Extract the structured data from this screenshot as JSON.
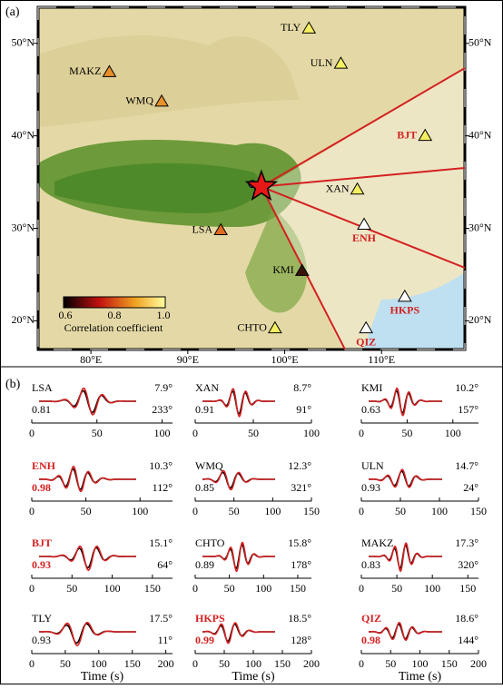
{
  "panel_a": {
    "label": "(a)",
    "lon_range": [
      74.55,
      118.6
    ],
    "lat_range": [
      16.9,
      53.9
    ],
    "lon_ticks": [
      {
        "value": 80,
        "label": "80°E"
      },
      {
        "value": 90,
        "label": "90°E"
      },
      {
        "value": 100,
        "label": "100°E"
      },
      {
        "value": 110,
        "label": "110°E"
      }
    ],
    "lat_ticks": [
      {
        "value": 50,
        "label": "50°N"
      },
      {
        "value": 40,
        "label": "40°N"
      },
      {
        "value": 30,
        "label": "30°N"
      },
      {
        "value": 20,
        "label": "20°N"
      }
    ],
    "epicenter": {
      "lon": 97.6,
      "lat": 34.5
    },
    "stations": [
      {
        "name": "TLY",
        "lon": 102.5,
        "lat": 51.6,
        "color": "#f5f060",
        "highlight": false
      },
      {
        "name": "ULN",
        "lon": 105.8,
        "lat": 47.8,
        "color": "#f5f060",
        "highlight": false
      },
      {
        "name": "MAKZ",
        "lon": 81.9,
        "lat": 46.9,
        "color": "#e8902a",
        "highlight": false
      },
      {
        "name": "WMQ",
        "lon": 87.3,
        "lat": 43.7,
        "color": "#e8902a",
        "highlight": false
      },
      {
        "name": "BJT",
        "lon": 114.5,
        "lat": 40.0,
        "color": "#f5f060",
        "highlight": true
      },
      {
        "name": "XAN",
        "lon": 107.5,
        "lat": 34.2,
        "color": "#f5f060",
        "highlight": false
      },
      {
        "name": "ENH",
        "lon": 108.2,
        "lat": 30.4,
        "color": "#ffffff",
        "highlight": true
      },
      {
        "name": "LSA",
        "lon": 93.4,
        "lat": 29.8,
        "color": "#e06a20",
        "highlight": false
      },
      {
        "name": "KMI",
        "lon": 101.8,
        "lat": 25.4,
        "color": "#3a1408",
        "highlight": false
      },
      {
        "name": "HKPS",
        "lon": 112.4,
        "lat": 22.6,
        "color": "#ffffff",
        "highlight": true
      },
      {
        "name": "QIZ",
        "lon": 108.4,
        "lat": 19.2,
        "color": "#ffffff",
        "highlight": true
      },
      {
        "name": "CHTO",
        "lon": 99.0,
        "lat": 19.2,
        "color": "#f5f060",
        "highlight": false
      }
    ],
    "colorbar": {
      "ticks": [
        "0.6",
        "0.8",
        "1.0"
      ],
      "label": "Correlation coefficient"
    }
  },
  "panel_b": {
    "label": "(b)",
    "x_label": "Time (s)",
    "waveforms": [
      {
        "station": "LSA",
        "distance": "7.9°",
        "azimuth": "233°",
        "cc": "0.81",
        "xlim": [
          0,
          108
        ],
        "xticks": [
          0,
          50,
          100
        ],
        "highlight": false
      },
      {
        "station": "XAN",
        "distance": "8.7°",
        "azimuth": "91°",
        "cc": "0.91",
        "xlim": [
          0,
          100
        ],
        "xticks": [
          0,
          50,
          100
        ],
        "highlight": false
      },
      {
        "station": "KMI",
        "distance": "10.2°",
        "azimuth": "157°",
        "cc": "0.63",
        "xlim": [
          0,
          128
        ],
        "xticks": [
          0,
          50,
          100
        ],
        "highlight": false
      },
      {
        "station": "ENH",
        "distance": "10.3°",
        "azimuth": "112°",
        "cc": "0.98",
        "xlim": [
          0,
          130
        ],
        "xticks": [
          0,
          50,
          100
        ],
        "highlight": true
      },
      {
        "station": "WMQ",
        "distance": "12.3°",
        "azimuth": "321°",
        "cc": "0.85",
        "xlim": [
          0,
          150
        ],
        "xticks": [
          0,
          50,
          100,
          150
        ],
        "highlight": false
      },
      {
        "station": "ULN",
        "distance": "14.7°",
        "azimuth": "24°",
        "cc": "0.93",
        "xlim": [
          0,
          150
        ],
        "xticks": [
          0,
          50,
          100,
          150
        ],
        "highlight": false
      },
      {
        "station": "BJT",
        "distance": "15.1°",
        "azimuth": "64°",
        "cc": "0.93",
        "xlim": [
          0,
          175
        ],
        "xticks": [
          0,
          50,
          100,
          150
        ],
        "highlight": true
      },
      {
        "station": "CHTO",
        "distance": "15.8°",
        "azimuth": "178°",
        "cc": "0.89",
        "xlim": [
          0,
          170
        ],
        "xticks": [
          0,
          50,
          100,
          150
        ],
        "highlight": false
      },
      {
        "station": "MAKZ",
        "distance": "17.3°",
        "azimuth": "320°",
        "cc": "0.83",
        "xlim": [
          0,
          165
        ],
        "xticks": [
          0,
          50,
          100,
          150
        ],
        "highlight": false
      },
      {
        "station": "TLY",
        "distance": "17.5°",
        "azimuth": "11°",
        "cc": "0.93",
        "xlim": [
          0,
          210
        ],
        "xticks": [
          0,
          50,
          100,
          150,
          200
        ],
        "highlight": false
      },
      {
        "station": "HKPS",
        "distance": "18.5°",
        "azimuth": "128°",
        "cc": "0.99",
        "xlim": [
          0,
          200
        ],
        "xticks": [
          0,
          50,
          100,
          150,
          200
        ],
        "highlight": true
      },
      {
        "station": "QIZ",
        "distance": "18.6°",
        "azimuth": "144°",
        "cc": "0.98",
        "xlim": [
          0,
          200
        ],
        "xticks": [
          0,
          50,
          100,
          150,
          200
        ],
        "highlight": true
      }
    ]
  }
}
